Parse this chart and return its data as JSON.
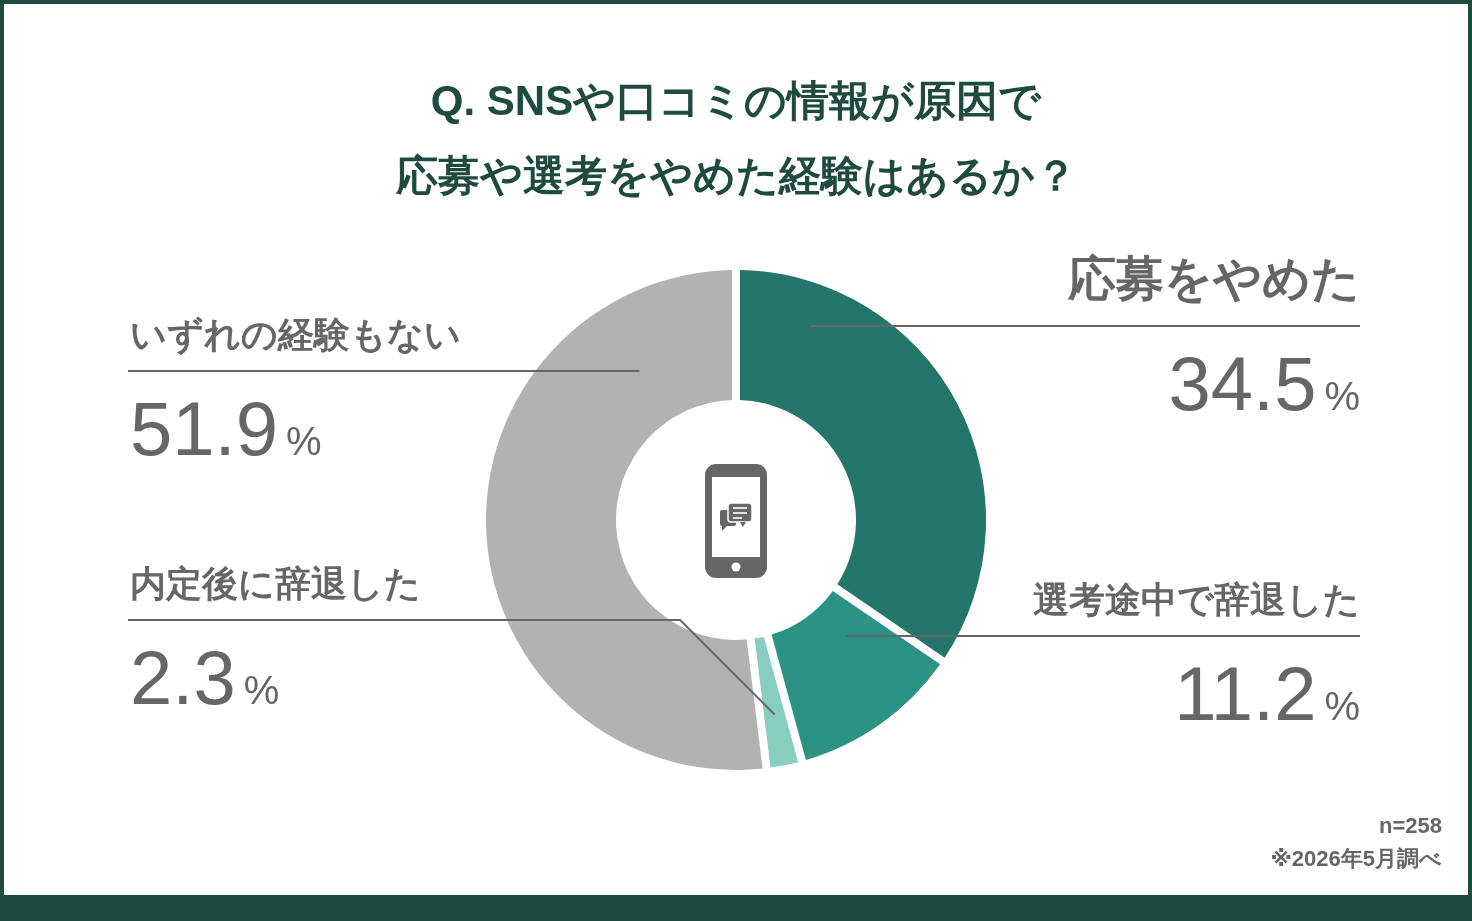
{
  "chart_data": {
    "type": "donut",
    "title": "Q. SNSや口コミの情報が原因で応募や選考をやめた経験はあるか？",
    "categories": [
      "応募をやめた",
      "選考途中で辞退した",
      "内定後に辞退した",
      "いずれの経験もない"
    ],
    "values": [
      34.5,
      11.2,
      2.3,
      51.9
    ],
    "colors": [
      "#24756a",
      "#2c9384",
      "#87cdc0",
      "#b2b2b2"
    ],
    "value_labels": [
      "34.5%",
      "11.2%",
      "2.3%",
      "51.9%"
    ],
    "annotations": [
      "n=258",
      "※2026年5月調べ"
    ]
  }
}
